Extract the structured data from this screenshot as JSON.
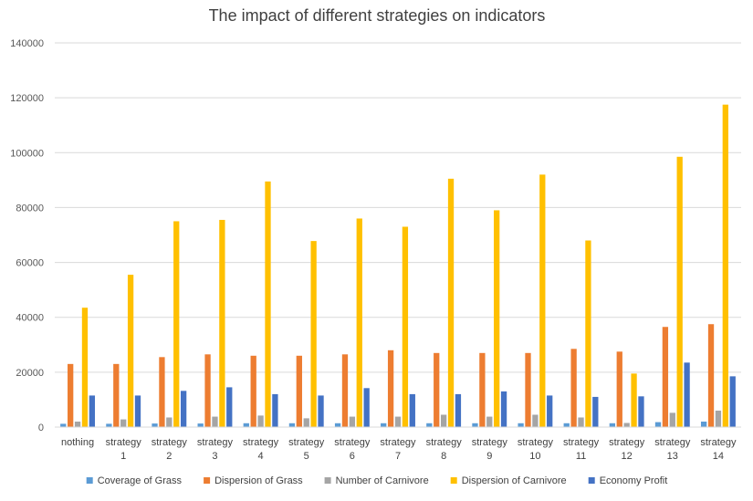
{
  "chart_data": {
    "type": "bar",
    "title": "The impact of different strategies on indicators",
    "xlabel": "",
    "ylabel": "",
    "ylim": [
      0,
      140000
    ],
    "yticks": [
      0,
      20000,
      40000,
      60000,
      80000,
      100000,
      120000,
      140000
    ],
    "grid": true,
    "legend_position": "bottom",
    "categories": [
      [
        "nothing"
      ],
      [
        "strategy",
        "1"
      ],
      [
        "strategy",
        "2"
      ],
      [
        "strategy",
        "3"
      ],
      [
        "strategy",
        "4"
      ],
      [
        "strategy",
        "5"
      ],
      [
        "strategy",
        "6"
      ],
      [
        "strategy",
        "7"
      ],
      [
        "strategy",
        "8"
      ],
      [
        "strategy",
        "9"
      ],
      [
        "strategy",
        "10"
      ],
      [
        "strategy",
        "11"
      ],
      [
        "strategy",
        "12"
      ],
      [
        "strategy",
        "13"
      ],
      [
        "strategy",
        "14"
      ]
    ],
    "series": [
      {
        "name": "Coverage of Grass",
        "color": "#5B9BD5",
        "values": [
          1200,
          1200,
          1300,
          1300,
          1400,
          1400,
          1400,
          1400,
          1400,
          1400,
          1400,
          1400,
          1400,
          1800,
          2000
        ]
      },
      {
        "name": "Dispersion of Grass",
        "color": "#ED7D31",
        "values": [
          23000,
          23000,
          25500,
          26500,
          26000,
          26000,
          26500,
          28000,
          27000,
          27000,
          27000,
          28500,
          27500,
          36500,
          37500
        ]
      },
      {
        "name": "Number of Carnivore",
        "color": "#A5A5A5",
        "values": [
          2000,
          2800,
          3500,
          3800,
          4200,
          3200,
          3800,
          3800,
          4500,
          3800,
          4500,
          3500,
          1500,
          5200,
          6000
        ]
      },
      {
        "name": "Dispersion of Carnivore",
        "color": "#FFC000",
        "values": [
          43500,
          55500,
          75000,
          75500,
          89500,
          67800,
          76000,
          73000,
          90500,
          79000,
          92000,
          68000,
          19500,
          98500,
          117500
        ]
      },
      {
        "name": "Economy Profit",
        "color": "#4472C4",
        "values": [
          11500,
          11500,
          13200,
          14500,
          12000,
          11500,
          14200,
          12000,
          12000,
          13000,
          11500,
          11000,
          11200,
          23500,
          18500
        ]
      }
    ]
  }
}
